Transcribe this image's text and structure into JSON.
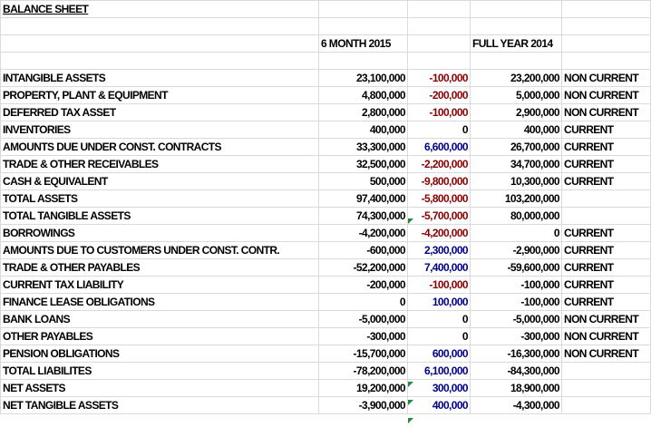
{
  "table": {
    "title": "BALANCE SHEET",
    "header": [
      "6 MONTH 2015",
      "FULL YEAR 2014"
    ],
    "rows": [
      {
        "label": "INTANGIBLE ASSETS",
        "h2015": "23,100,000",
        "change": "-100,000",
        "fy2014": "23,200,000",
        "class": "NON CURRENT"
      },
      {
        "label": "PROPERTY, PLANT & EQUIPMENT",
        "h2015": "4,800,000",
        "change": "-200,000",
        "fy2014": "5,000,000",
        "class": "NON CURRENT"
      },
      {
        "label": "DEFERRED TAX ASSET",
        "h2015": "2,800,000",
        "change": "-100,000",
        "fy2014": "2,900,000",
        "class": "NON CURRENT"
      },
      {
        "label": "INVENTORIES",
        "h2015": "400,000",
        "change": "0",
        "fy2014": "400,000",
        "class": "CURRENT"
      },
      {
        "label": "AMOUNTS DUE UNDER CONST. CONTRACTS",
        "h2015": "33,300,000",
        "change": "6,600,000",
        "fy2014": "26,700,000",
        "class": "CURRENT"
      },
      {
        "label": "TRADE & OTHER RECEIVABLES",
        "h2015": "32,500,000",
        "change": "-2,200,000",
        "fy2014": "34,700,000",
        "class": "CURRENT"
      },
      {
        "label": "CASH & EQUIVALENT",
        "h2015": "500,000",
        "change": "-9,800,000",
        "fy2014": "10,300,000",
        "class": "CURRENT"
      },
      {
        "label": "TOTAL ASSETS",
        "h2015": "97,400,000",
        "change": "-5,800,000",
        "fy2014": "103,200,000"
      },
      {
        "label": "TOTAL TANGIBLE ASSETS",
        "h2015": "74,300,000",
        "change": "-5,700,000",
        "fy2014": "80,000,000"
      },
      {
        "label": "BORROWINGS",
        "h2015": "-4,200,000",
        "change": "-4,200,000",
        "fy2014": "0",
        "class": "CURRENT"
      },
      {
        "label": "AMOUNTS DUE TO CUSTOMERS UNDER CONST. CONTR.",
        "h2015": "-600,000",
        "change": "2,300,000",
        "fy2014": "-2,900,000",
        "class": "CURRENT"
      },
      {
        "label": "TRADE & OTHER PAYABLES",
        "h2015": "-52,200,000",
        "change": "7,400,000",
        "fy2014": "-59,600,000",
        "class": "CURRENT"
      },
      {
        "label": "CURRENT TAX LIABILITY",
        "h2015": "-200,000",
        "change": "-100,000",
        "fy2014": "-100,000",
        "class": "CURRENT"
      },
      {
        "label": "FINANCE LEASE OBLIGATIONS",
        "h2015": "0",
        "change": "100,000",
        "fy2014": "-100,000",
        "class": "CURRENT"
      },
      {
        "label": "BANK LOANS",
        "h2015": "-5,000,000",
        "change": "0",
        "fy2014": "-5,000,000",
        "class": "NON CURRENT"
      },
      {
        "label": "OTHER PAYABLES",
        "h2015": "-300,000",
        "change": "0",
        "fy2014": "-300,000",
        "class": "NON CURRENT"
      },
      {
        "label": "PENSION OBLIGATIONS",
        "h2015": "-15,700,000",
        "change": "600,000",
        "fy2014": "-16,300,000",
        "class": "NON CURRENT"
      },
      {
        "label": "TOTAL LIABILITES",
        "h2015": "-78,200,000",
        "change": "6,100,000",
        "fy2014": "-84,300,000"
      },
      {
        "label": "NET ASSETS",
        "h2015": "19,200,000",
        "change": "300,000",
        "fy2014": "18,900,000"
      },
      {
        "label": "NET TANGIBLE ASSETS",
        "h2015": "-3,900,000",
        "change": "400,000",
        "fy2014": "-4,300,000"
      }
    ]
  }
}
